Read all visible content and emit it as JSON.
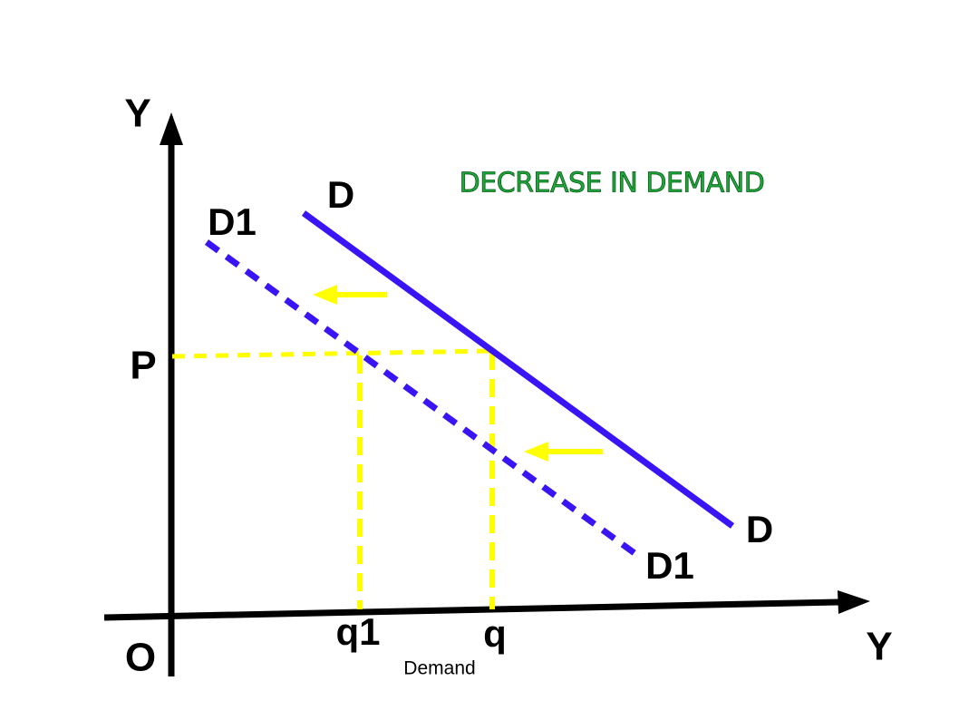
{
  "title": "DECREASE IN DEMAND",
  "axes": {
    "y_label": "Y",
    "x_label": "Y",
    "origin": "O",
    "x_caption": "Demand"
  },
  "price": {
    "label": "P"
  },
  "quantities": [
    {
      "label": "q1"
    },
    {
      "label": "q"
    }
  ],
  "curves": [
    {
      "labels": [
        "D",
        "D"
      ]
    },
    {
      "labels": [
        "D1",
        "D1"
      ]
    }
  ]
}
